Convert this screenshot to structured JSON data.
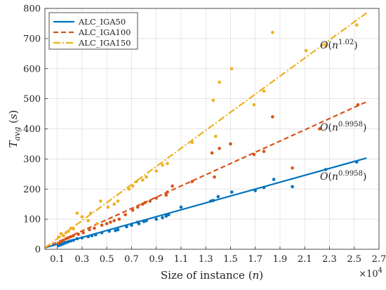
{
  "chart_data": {
    "type": "scatter",
    "xlabel": "Size of instance (n)",
    "ylabel": "T_avg (s)",
    "x_scale_label": "×10^4",
    "xlim": [
      0,
      27000
    ],
    "ylim": [
      0,
      800
    ],
    "x_ticks": [
      1000,
      3000,
      5000,
      7000,
      9000,
      11000,
      13000,
      15000,
      17000,
      19000,
      21000,
      23000,
      25000,
      27000
    ],
    "x_tick_labels": [
      "0.1",
      "0.3",
      "0.5",
      "0.7",
      "0.9",
      "1.1",
      "1.3",
      "1.5",
      "1.7",
      "1.9",
      "2.1",
      "2.3",
      "2.5",
      "2.7"
    ],
    "y_ticks": [
      0,
      100,
      200,
      300,
      400,
      500,
      600,
      700,
      800
    ],
    "y_tick_labels": [
      "0",
      "100",
      "200",
      "300",
      "400",
      "500",
      "600",
      "700",
      "800"
    ],
    "grid": true,
    "legend_position": "top-left",
    "series": [
      {
        "name": "ALC_IGA50",
        "color": "#0072BD",
        "line_style": "solid",
        "fit_label": "O(n^0.9958)",
        "fit_line": [
          [
            0,
            5
          ],
          [
            26000,
            303
          ]
        ],
        "points": [
          [
            1100,
            12
          ],
          [
            1300,
            15
          ],
          [
            1500,
            18
          ],
          [
            1700,
            22
          ],
          [
            1900,
            25
          ],
          [
            2100,
            28
          ],
          [
            2300,
            30
          ],
          [
            2600,
            35
          ],
          [
            3000,
            38
          ],
          [
            3500,
            42
          ],
          [
            3800,
            45
          ],
          [
            4100,
            48
          ],
          [
            4600,
            55
          ],
          [
            5200,
            60
          ],
          [
            5700,
            62
          ],
          [
            5900,
            65
          ],
          [
            6600,
            75
          ],
          [
            7000,
            80
          ],
          [
            7500,
            90
          ],
          [
            7600,
            85
          ],
          [
            8000,
            92
          ],
          [
            8200,
            95
          ],
          [
            9000,
            100
          ],
          [
            9500,
            105
          ],
          [
            9800,
            110
          ],
          [
            10000,
            115
          ],
          [
            11000,
            140
          ],
          [
            13400,
            160
          ],
          [
            13600,
            162
          ],
          [
            14000,
            175
          ],
          [
            15100,
            190
          ],
          [
            17000,
            195
          ],
          [
            17700,
            205
          ],
          [
            18500,
            232
          ],
          [
            20000,
            208
          ],
          [
            22700,
            265
          ],
          [
            25200,
            290
          ]
        ]
      },
      {
        "name": "ALC_IGA100",
        "color": "#D95319",
        "line_style": "dashed",
        "fit_label": "O(n^0.9958)",
        "fit_line": [
          [
            0,
            5
          ],
          [
            26000,
            490
          ]
        ],
        "points": [
          [
            1100,
            20
          ],
          [
            1300,
            25
          ],
          [
            1500,
            30
          ],
          [
            1700,
            35
          ],
          [
            1900,
            38
          ],
          [
            2100,
            42
          ],
          [
            2300,
            45
          ],
          [
            2700,
            50
          ],
          [
            3100,
            55
          ],
          [
            3600,
            65
          ],
          [
            4000,
            70
          ],
          [
            4600,
            80
          ],
          [
            5000,
            85
          ],
          [
            5300,
            90
          ],
          [
            5600,
            95
          ],
          [
            6000,
            100
          ],
          [
            6500,
            115
          ],
          [
            7100,
            130
          ],
          [
            7500,
            140
          ],
          [
            7900,
            150
          ],
          [
            8100,
            155
          ],
          [
            8500,
            160
          ],
          [
            9000,
            170
          ],
          [
            9800,
            180
          ],
          [
            9900,
            190
          ],
          [
            10300,
            210
          ],
          [
            11900,
            225
          ],
          [
            13500,
            320
          ],
          [
            13700,
            240
          ],
          [
            14100,
            335
          ],
          [
            15000,
            350
          ],
          [
            16900,
            315
          ],
          [
            17700,
            325
          ],
          [
            18400,
            440
          ],
          [
            20000,
            270
          ],
          [
            22200,
            400
          ],
          [
            25300,
            480
          ]
        ]
      },
      {
        "name": "ALC_IGA150",
        "color": "#EDB120",
        "line_style": "dashdot",
        "fit_label": "O(n^1.02)",
        "fit_line": [
          [
            0,
            5
          ],
          [
            26000,
            785
          ]
        ],
        "points": [
          [
            1100,
            40
          ],
          [
            1300,
            52
          ],
          [
            1500,
            45
          ],
          [
            1700,
            55
          ],
          [
            1900,
            60
          ],
          [
            2100,
            70
          ],
          [
            2300,
            68
          ],
          [
            2600,
            120
          ],
          [
            3000,
            108
          ],
          [
            3500,
            95
          ],
          [
            3700,
            120
          ],
          [
            4200,
            85
          ],
          [
            4500,
            160
          ],
          [
            5100,
            140
          ],
          [
            5600,
            150
          ],
          [
            5900,
            160
          ],
          [
            6800,
            200
          ],
          [
            7100,
            210
          ],
          [
            7400,
            225
          ],
          [
            7900,
            230
          ],
          [
            8200,
            240
          ],
          [
            9000,
            260
          ],
          [
            9500,
            280
          ],
          [
            9900,
            285
          ],
          [
            11900,
            355
          ],
          [
            13600,
            495
          ],
          [
            13800,
            375
          ],
          [
            14100,
            555
          ],
          [
            15100,
            600
          ],
          [
            16900,
            480
          ],
          [
            17700,
            525
          ],
          [
            18400,
            720
          ],
          [
            21100,
            660
          ],
          [
            22700,
            675
          ],
          [
            25200,
            745
          ]
        ]
      }
    ]
  }
}
